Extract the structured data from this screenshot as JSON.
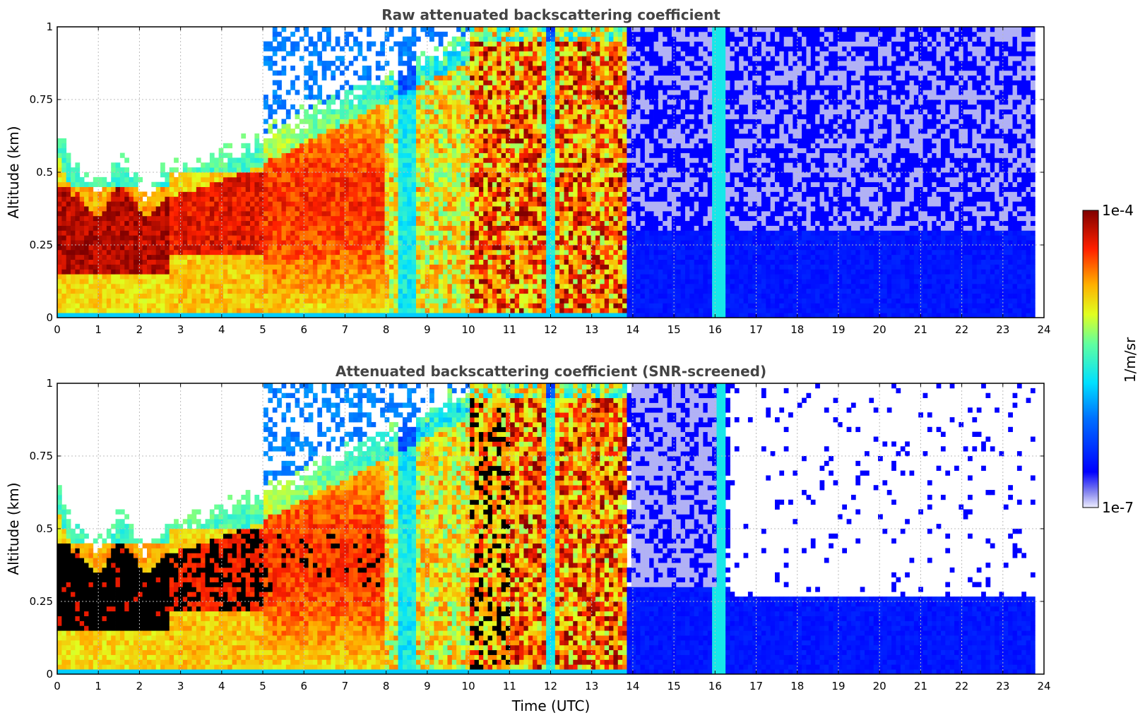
{
  "chart_data": [
    {
      "type": "heatmap",
      "title": "Raw attenuated backscattering coefficient",
      "xlabel": "",
      "ylabel": "Altitude (km)",
      "xlim": [
        0,
        24
      ],
      "ylim": [
        0,
        1
      ],
      "x_ticks": [
        "0",
        "1",
        "2",
        "3",
        "4",
        "5",
        "6",
        "7",
        "8",
        "9",
        "10",
        "11",
        "12",
        "13",
        "14",
        "15",
        "16",
        "17",
        "18",
        "19",
        "20",
        "21",
        "22",
        "23",
        "24"
      ],
      "y_ticks": [
        "0",
        "0.25",
        "0.5",
        "0.75",
        "1"
      ],
      "grid": true,
      "screened": false
    },
    {
      "type": "heatmap",
      "title": "Attenuated backscattering coefficient (SNR-screened)",
      "xlabel": "Time (UTC)",
      "ylabel": "Altitude (km)",
      "xlim": [
        0,
        24
      ],
      "ylim": [
        0,
        1
      ],
      "x_ticks": [
        "0",
        "1",
        "2",
        "3",
        "4",
        "5",
        "6",
        "7",
        "8",
        "9",
        "10",
        "11",
        "12",
        "13",
        "14",
        "15",
        "16",
        "17",
        "18",
        "19",
        "20",
        "21",
        "22",
        "23",
        "24"
      ],
      "y_ticks": [
        "0",
        "0.25",
        "0.5",
        "0.75",
        "1"
      ],
      "grid": true,
      "screened": true
    }
  ],
  "colorbar": {
    "label": "1/m/sr",
    "max_label": "1e-4",
    "min_label": "1e-7",
    "scale": "log",
    "colormap": "jet"
  }
}
